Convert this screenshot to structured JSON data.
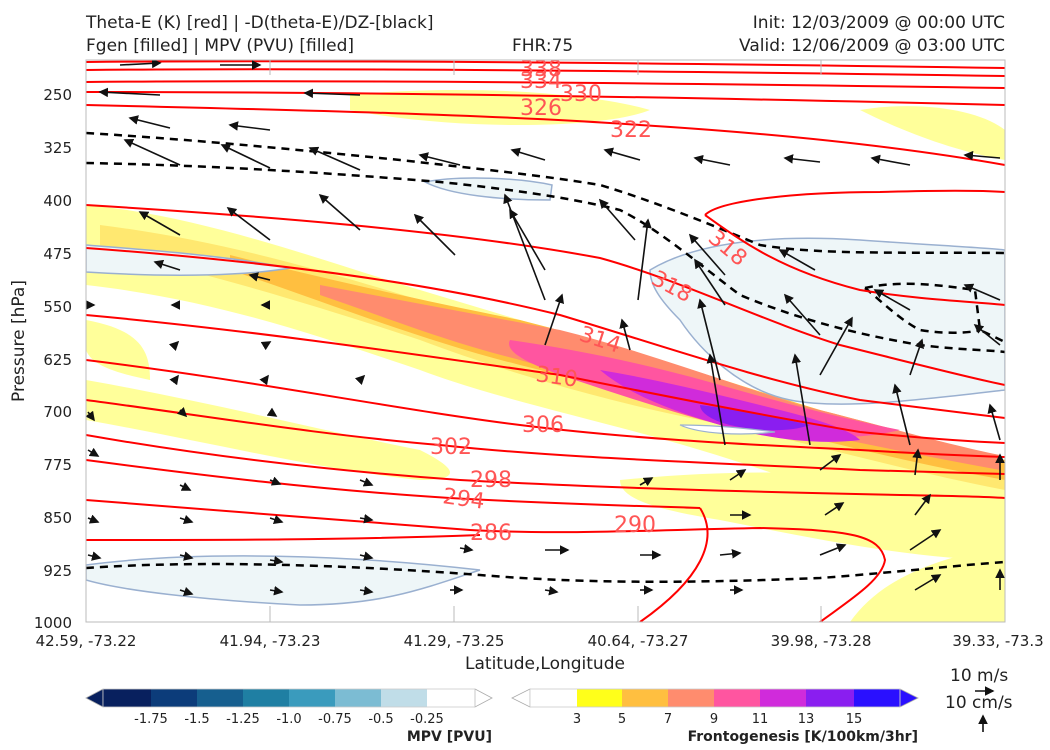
{
  "header": {
    "title_left_1": "Theta-E (K) [red] | -D(theta-E)/DZ-[black]",
    "title_left_2": "Fgen [filled] | MPV (PVU) [filled]",
    "fhr": "FHR:75",
    "init": "Init: 12/03/2009 @ 00:00 UTC",
    "valid": "Valid: 12/06/2009 @ 03:00 UTC"
  },
  "chart_data": {
    "type": "cross-section",
    "xlabel": "Latitude,Longitude",
    "ylabel": "Pressure [hPa]",
    "x_ticks": [
      "42.59, -73.22",
      "41.94, -73.23",
      "41.29, -73.25",
      "40.64, -73.27",
      "39.98, -73.28",
      "39.33, -73.3"
    ],
    "y_ticks": [
      250,
      325,
      400,
      475,
      550,
      625,
      700,
      775,
      850,
      925,
      1000
    ],
    "ylim": [
      1000,
      200
    ],
    "theta_e_contour_labels": [
      "338",
      "334",
      "330",
      "326",
      "322",
      "318",
      "318",
      "314",
      "310",
      "306",
      "302",
      "298",
      "294",
      "290",
      "286"
    ],
    "theta_e_color": "#ff0000",
    "dthetae_dz_color": "#000000",
    "mpv_colorbar": {
      "label": "MPV [PVU]",
      "ticks": [
        "-1.75",
        "-1.5",
        "-1.25",
        "-1.0",
        "-0.75",
        "-0.5",
        "-0.25"
      ],
      "colors": [
        "#08205e",
        "#0c3c7a",
        "#165f8f",
        "#1f7fa3",
        "#3a9bbd",
        "#7cbcd3",
        "#c0dde8",
        "#ffffff"
      ]
    },
    "fgen_colorbar": {
      "label": "Frontogenesis [K/100km/3hr]",
      "ticks": [
        "3",
        "5",
        "7",
        "9",
        "11",
        "13",
        "15"
      ],
      "colors": [
        "#ffffff",
        "#ffff1a",
        "#ffbf40",
        "#ff8c6e",
        "#ff55a0",
        "#d02bdb",
        "#8a1ef0",
        "#2a10ff"
      ]
    },
    "wind_reference": {
      "horizontal": "10 m/s",
      "vertical": "10 cm/s"
    },
    "grid": true
  }
}
